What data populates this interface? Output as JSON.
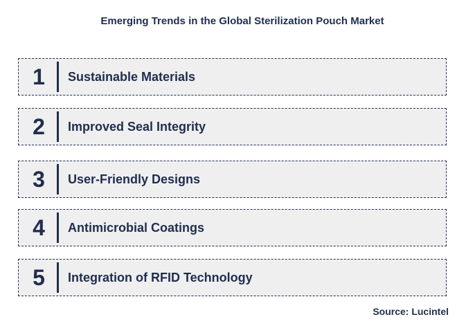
{
  "title": "Emerging Trends in the Global Sterilization Pouch Market",
  "trends": [
    {
      "number": "1",
      "label": "Sustainable Materials"
    },
    {
      "number": "2",
      "label": "Improved Seal Integrity"
    },
    {
      "number": "3",
      "label": "User-Friendly Designs"
    },
    {
      "number": "4",
      "label": "Antimicrobial Coatings"
    },
    {
      "number": "5",
      "label": "Integration of RFID Technology"
    }
  ],
  "source": "Source: Lucintel",
  "colors": {
    "text": "#1f2d4f",
    "box_background": "#efefef",
    "box_border": "#1f2d4f"
  }
}
